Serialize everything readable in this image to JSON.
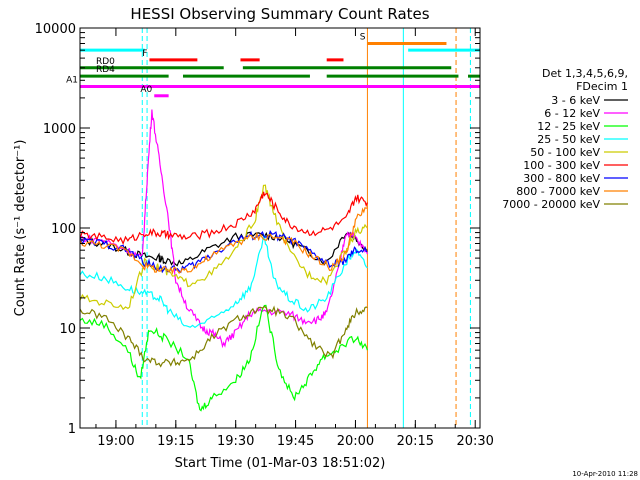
{
  "chart_data": {
    "type": "line",
    "title": "HESSI Observing Summary Count Rates",
    "xlabel": "Start Time (01-Mar-03 18:51:02)",
    "ylabel": "Count Rate (s⁻¹ detector⁻¹)",
    "yscale": "log",
    "ylim": [
      1,
      10000
    ],
    "xlim_minutes": [
      18.85,
      20.52
    ],
    "x_tick_labels": [
      "19:00",
      "19:15",
      "19:30",
      "19:45",
      "20:00",
      "20:15",
      "20:30"
    ],
    "x_tick_hours": [
      19.0,
      19.25,
      19.5,
      19.75,
      20.0,
      20.25,
      20.5
    ],
    "y_tick_labels": [
      "1",
      "10",
      "100",
      "1000",
      "10000"
    ],
    "y_tick_values": [
      1,
      10,
      100,
      1000,
      10000
    ],
    "legend_position": "right",
    "legend_header": [
      "Det 1,3,4,5,6,9,",
      "FDecim 1"
    ],
    "stamp": "10-Apr-2010 11:28",
    "series": [
      {
        "name": "3 - 6 keV",
        "color": "#000000",
        "points": [
          [
            18.85,
            75
          ],
          [
            18.95,
            70
          ],
          [
            19.05,
            58
          ],
          [
            19.12,
            52
          ],
          [
            19.18,
            50
          ],
          [
            19.2,
            48
          ],
          [
            19.28,
            44
          ],
          [
            19.38,
            60
          ],
          [
            19.5,
            82
          ],
          [
            19.62,
            85
          ],
          [
            19.7,
            80
          ],
          [
            19.78,
            62
          ],
          [
            19.88,
            45
          ],
          [
            19.96,
            92
          ],
          [
            20.0,
            80
          ],
          [
            20.05,
            60
          ]
        ]
      },
      {
        "name": "6 - 12 keV",
        "color": "#ff00ff",
        "points": [
          [
            18.85,
            80
          ],
          [
            18.95,
            75
          ],
          [
            19.05,
            60
          ],
          [
            19.11,
            50
          ],
          [
            19.13,
            300
          ],
          [
            19.15,
            1500
          ],
          [
            19.18,
            500
          ],
          [
            19.22,
            120
          ],
          [
            19.25,
            30
          ],
          [
            19.3,
            16
          ],
          [
            19.36,
            10
          ],
          [
            19.4,
            9
          ],
          [
            19.45,
            7
          ],
          [
            19.5,
            9
          ],
          [
            19.56,
            14
          ],
          [
            19.62,
            15
          ],
          [
            19.72,
            14
          ],
          [
            19.78,
            12
          ],
          [
            19.84,
            12
          ],
          [
            19.88,
            14
          ],
          [
            19.93,
            40
          ],
          [
            19.96,
            90
          ],
          [
            20.0,
            80
          ],
          [
            20.05,
            55
          ]
        ]
      },
      {
        "name": "12 - 25 keV",
        "color": "#00ff00",
        "points": [
          [
            18.85,
            12
          ],
          [
            18.95,
            11
          ],
          [
            19.05,
            6
          ],
          [
            19.1,
            3
          ],
          [
            19.14,
            10
          ],
          [
            19.2,
            8
          ],
          [
            19.3,
            5
          ],
          [
            19.35,
            1.5
          ],
          [
            19.4,
            2
          ],
          [
            19.5,
            3
          ],
          [
            19.56,
            5
          ],
          [
            19.62,
            18
          ],
          [
            19.68,
            4
          ],
          [
            19.74,
            2
          ],
          [
            19.8,
            3
          ],
          [
            19.86,
            5
          ],
          [
            19.92,
            6
          ],
          [
            20.0,
            8
          ],
          [
            20.05,
            6
          ]
        ]
      },
      {
        "name": "25 - 50 keV",
        "color": "#00ffff",
        "points": [
          [
            18.85,
            35
          ],
          [
            18.95,
            32
          ],
          [
            19.05,
            25
          ],
          [
            19.12,
            22
          ],
          [
            19.18,
            20
          ],
          [
            19.22,
            15
          ],
          [
            19.3,
            10
          ],
          [
            19.4,
            12
          ],
          [
            19.5,
            18
          ],
          [
            19.56,
            25
          ],
          [
            19.62,
            80
          ],
          [
            19.66,
            30
          ],
          [
            19.72,
            20
          ],
          [
            19.8,
            15
          ],
          [
            19.88,
            20
          ],
          [
            19.96,
            45
          ],
          [
            20.0,
            60
          ],
          [
            20.05,
            40
          ]
        ]
      },
      {
        "name": "50 - 100 keV",
        "color": "#cccc00",
        "points": [
          [
            18.85,
            20
          ],
          [
            18.95,
            18
          ],
          [
            19.05,
            16
          ],
          [
            19.12,
            45
          ],
          [
            19.18,
            40
          ],
          [
            19.22,
            35
          ],
          [
            19.3,
            28
          ],
          [
            19.4,
            35
          ],
          [
            19.5,
            60
          ],
          [
            19.58,
            120
          ],
          [
            19.62,
            270
          ],
          [
            19.66,
            140
          ],
          [
            19.72,
            60
          ],
          [
            19.8,
            35
          ],
          [
            19.88,
            30
          ],
          [
            19.96,
            60
          ],
          [
            20.0,
            90
          ],
          [
            20.05,
            100
          ]
        ]
      },
      {
        "name": "100 - 300 keV",
        "color": "#ff0000",
        "points": [
          [
            18.85,
            85
          ],
          [
            18.95,
            80
          ],
          [
            19.05,
            75
          ],
          [
            19.12,
            90
          ],
          [
            19.18,
            88
          ],
          [
            19.22,
            85
          ],
          [
            19.3,
            80
          ],
          [
            19.4,
            90
          ],
          [
            19.5,
            110
          ],
          [
            19.58,
            150
          ],
          [
            19.62,
            230
          ],
          [
            19.66,
            170
          ],
          [
            19.72,
            110
          ],
          [
            19.8,
            90
          ],
          [
            19.88,
            95
          ],
          [
            19.96,
            120
          ],
          [
            20.0,
            200
          ],
          [
            20.05,
            180
          ]
        ]
      },
      {
        "name": "300 - 800 keV",
        "color": "#0000ff",
        "points": [
          [
            18.85,
            75
          ],
          [
            18.95,
            70
          ],
          [
            19.05,
            60
          ],
          [
            19.12,
            45
          ],
          [
            19.18,
            40
          ],
          [
            19.25,
            38
          ],
          [
            19.32,
            42
          ],
          [
            19.4,
            55
          ],
          [
            19.5,
            75
          ],
          [
            19.58,
            85
          ],
          [
            19.66,
            85
          ],
          [
            19.74,
            75
          ],
          [
            19.82,
            55
          ],
          [
            19.9,
            42
          ],
          [
            19.96,
            48
          ],
          [
            20.0,
            60
          ],
          [
            20.05,
            58
          ]
        ]
      },
      {
        "name": "800 - 7000 keV",
        "color": "#ff8000",
        "points": [
          [
            18.85,
            72
          ],
          [
            18.95,
            68
          ],
          [
            19.05,
            58
          ],
          [
            19.12,
            42
          ],
          [
            19.18,
            38
          ],
          [
            19.25,
            37
          ],
          [
            19.32,
            40
          ],
          [
            19.4,
            52
          ],
          [
            19.5,
            72
          ],
          [
            19.58,
            82
          ],
          [
            19.66,
            82
          ],
          [
            19.74,
            72
          ],
          [
            19.82,
            52
          ],
          [
            19.9,
            40
          ],
          [
            19.96,
            55
          ],
          [
            20.0,
            120
          ],
          [
            20.05,
            160
          ]
        ]
      },
      {
        "name": "7000 - 20000 keV",
        "color": "#808000",
        "points": [
          [
            18.85,
            15
          ],
          [
            18.95,
            13
          ],
          [
            19.05,
            8
          ],
          [
            19.12,
            5
          ],
          [
            19.18,
            4.5
          ],
          [
            19.25,
            4.5
          ],
          [
            19.32,
            5
          ],
          [
            19.4,
            8
          ],
          [
            19.5,
            12
          ],
          [
            19.58,
            15
          ],
          [
            19.66,
            15
          ],
          [
            19.74,
            12
          ],
          [
            19.82,
            7
          ],
          [
            19.9,
            5
          ],
          [
            19.96,
            10
          ],
          [
            20.0,
            14
          ],
          [
            20.05,
            16
          ]
        ]
      }
    ],
    "flag_bars": [
      {
        "label": "",
        "color": "#00ffff",
        "level": 6000,
        "segments": [
          [
            18.85,
            19.12
          ],
          [
            20.22,
            20.52
          ]
        ]
      },
      {
        "label": "F",
        "color": "#ff0000",
        "level": 4800,
        "segments": [
          [
            19.14,
            19.34
          ],
          [
            19.52,
            19.6
          ],
          [
            19.88,
            19.95
          ]
        ]
      },
      {
        "label": "S",
        "color": "#ff8000",
        "level": 7000,
        "segments": [
          [
            20.05,
            20.38
          ]
        ]
      },
      {
        "label": "RD0",
        "color": "#008000",
        "level": 4000,
        "segments": [
          [
            18.85,
            19.45
          ],
          [
            19.53,
            20.4
          ]
        ]
      },
      {
        "label": "RD4",
        "color": "#008000",
        "level": 3300,
        "segments": [
          [
            18.85,
            19.22
          ],
          [
            19.28,
            19.81
          ],
          [
            19.88,
            20.43
          ],
          [
            20.47,
            20.52
          ]
        ]
      },
      {
        "label": "A1",
        "color": "#ff00ff",
        "level": 2600,
        "segments": [
          [
            18.85,
            20.52
          ]
        ]
      },
      {
        "label": "A0",
        "color": "#ff00ff",
        "level": 2100,
        "segments": [
          [
            19.16,
            19.22
          ]
        ]
      }
    ],
    "vertical_markers": [
      {
        "hour": 18.85,
        "color": "#00ffff",
        "style": "solid"
      },
      {
        "hour": 19.11,
        "color": "#00ffff",
        "style": "dashed"
      },
      {
        "hour": 19.13,
        "color": "#00ffff",
        "style": "dashed"
      },
      {
        "hour": 20.05,
        "color": "#ff8000",
        "style": "solid"
      },
      {
        "hour": 20.2,
        "color": "#00ffff",
        "style": "solid"
      },
      {
        "hour": 20.42,
        "color": "#ff8000",
        "style": "dashed"
      },
      {
        "hour": 20.48,
        "color": "#00ffff",
        "style": "dashed"
      }
    ]
  }
}
